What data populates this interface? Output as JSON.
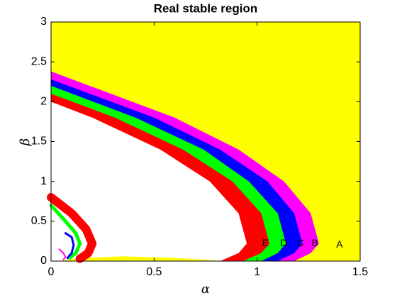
{
  "chart_data": {
    "type": "region",
    "title": "Real stable region",
    "x_label": "α",
    "y_label": "β",
    "xlim": [
      0,
      1.5
    ],
    "ylim": [
      0,
      3
    ],
    "xticks": [
      0,
      0.5,
      1,
      1.5
    ],
    "yticks": [
      0,
      0.5,
      1,
      1.5,
      2,
      2.5,
      3
    ],
    "regions": [
      {
        "label": "A",
        "label_x": 1.4,
        "label_y": 0.2,
        "color": "#ffff00",
        "x": [
          0,
          1.5,
          1.5,
          0
        ],
        "y": [
          0,
          0,
          3,
          3
        ]
      },
      {
        "label": "B",
        "label_x": 1.28,
        "label_y": 0.22,
        "color": "#ff00ff",
        "x": [
          0,
          0,
          0.6,
          0.91,
          1.13,
          1.26,
          1.3,
          1.26,
          1.18
        ],
        "y": [
          0,
          2.38,
          1.8,
          1.4,
          1.0,
          0.6,
          0.22,
          0.1,
          0
        ]
      },
      {
        "label": "C",
        "label_x": 1.21,
        "label_y": 0.22,
        "color": "#0000ff",
        "x": [
          0,
          0,
          0.5,
          0.82,
          1.05,
          1.18,
          1.22,
          1.18,
          1.1
        ],
        "y": [
          0,
          2.28,
          1.8,
          1.4,
          1.0,
          0.6,
          0.22,
          0.1,
          0
        ]
      },
      {
        "label": "D",
        "label_x": 1.13,
        "label_y": 0.22,
        "color": "#00ff00",
        "x": [
          0,
          0,
          0.41,
          0.74,
          0.96,
          1.1,
          1.14,
          1.1,
          1.02
        ],
        "y": [
          0,
          2.2,
          1.8,
          1.4,
          1.0,
          0.6,
          0.22,
          0.1,
          0
        ]
      },
      {
        "label": "E",
        "label_x": 1.04,
        "label_y": 0.22,
        "color": "#ff0000",
        "x": [
          0,
          0,
          0.31,
          0.64,
          0.88,
          1.02,
          1.06,
          1.02,
          0.93
        ],
        "y": [
          0,
          2.1,
          1.8,
          1.4,
          1.0,
          0.6,
          0.22,
          0.1,
          0
        ]
      },
      {
        "color": "#ffffff",
        "x": [
          0,
          0,
          0.2,
          0.53,
          0.77,
          0.91,
          0.95,
          0.91,
          0.82
        ],
        "y": [
          0,
          2.0,
          1.8,
          1.4,
          1.0,
          0.6,
          0.22,
          0.1,
          0
        ]
      },
      {
        "color": "#ffff00",
        "x": [
          0.03,
          0.15,
          0.35,
          0.6,
          0.8,
          0.82
        ],
        "y": [
          0,
          0.04,
          0.06,
          0.04,
          0.01,
          0
        ]
      }
    ],
    "curves": [
      {
        "color": "#ff0000",
        "x": [
          0,
          0.1,
          0.17,
          0.2,
          0.18,
          0.14
        ],
        "y": [
          0.8,
          0.6,
          0.4,
          0.22,
          0.1,
          0.03
        ]
      },
      {
        "color": "#00ff00",
        "x": [
          0,
          0.07,
          0.12,
          0.14,
          0.12,
          0.09
        ],
        "y": [
          0.7,
          0.5,
          0.35,
          0.22,
          0.1,
          0.04
        ]
      },
      {
        "color": "#0000ff",
        "x": [
          0.07,
          0.1,
          0.11,
          0.1,
          0.08
        ],
        "y": [
          0.35,
          0.3,
          0.2,
          0.1,
          0.04
        ]
      },
      {
        "color": "#ff00ff",
        "x": [
          0.04,
          0.06,
          0.07,
          0.06
        ],
        "y": [
          0.15,
          0.1,
          0.05,
          0.02
        ]
      }
    ]
  }
}
